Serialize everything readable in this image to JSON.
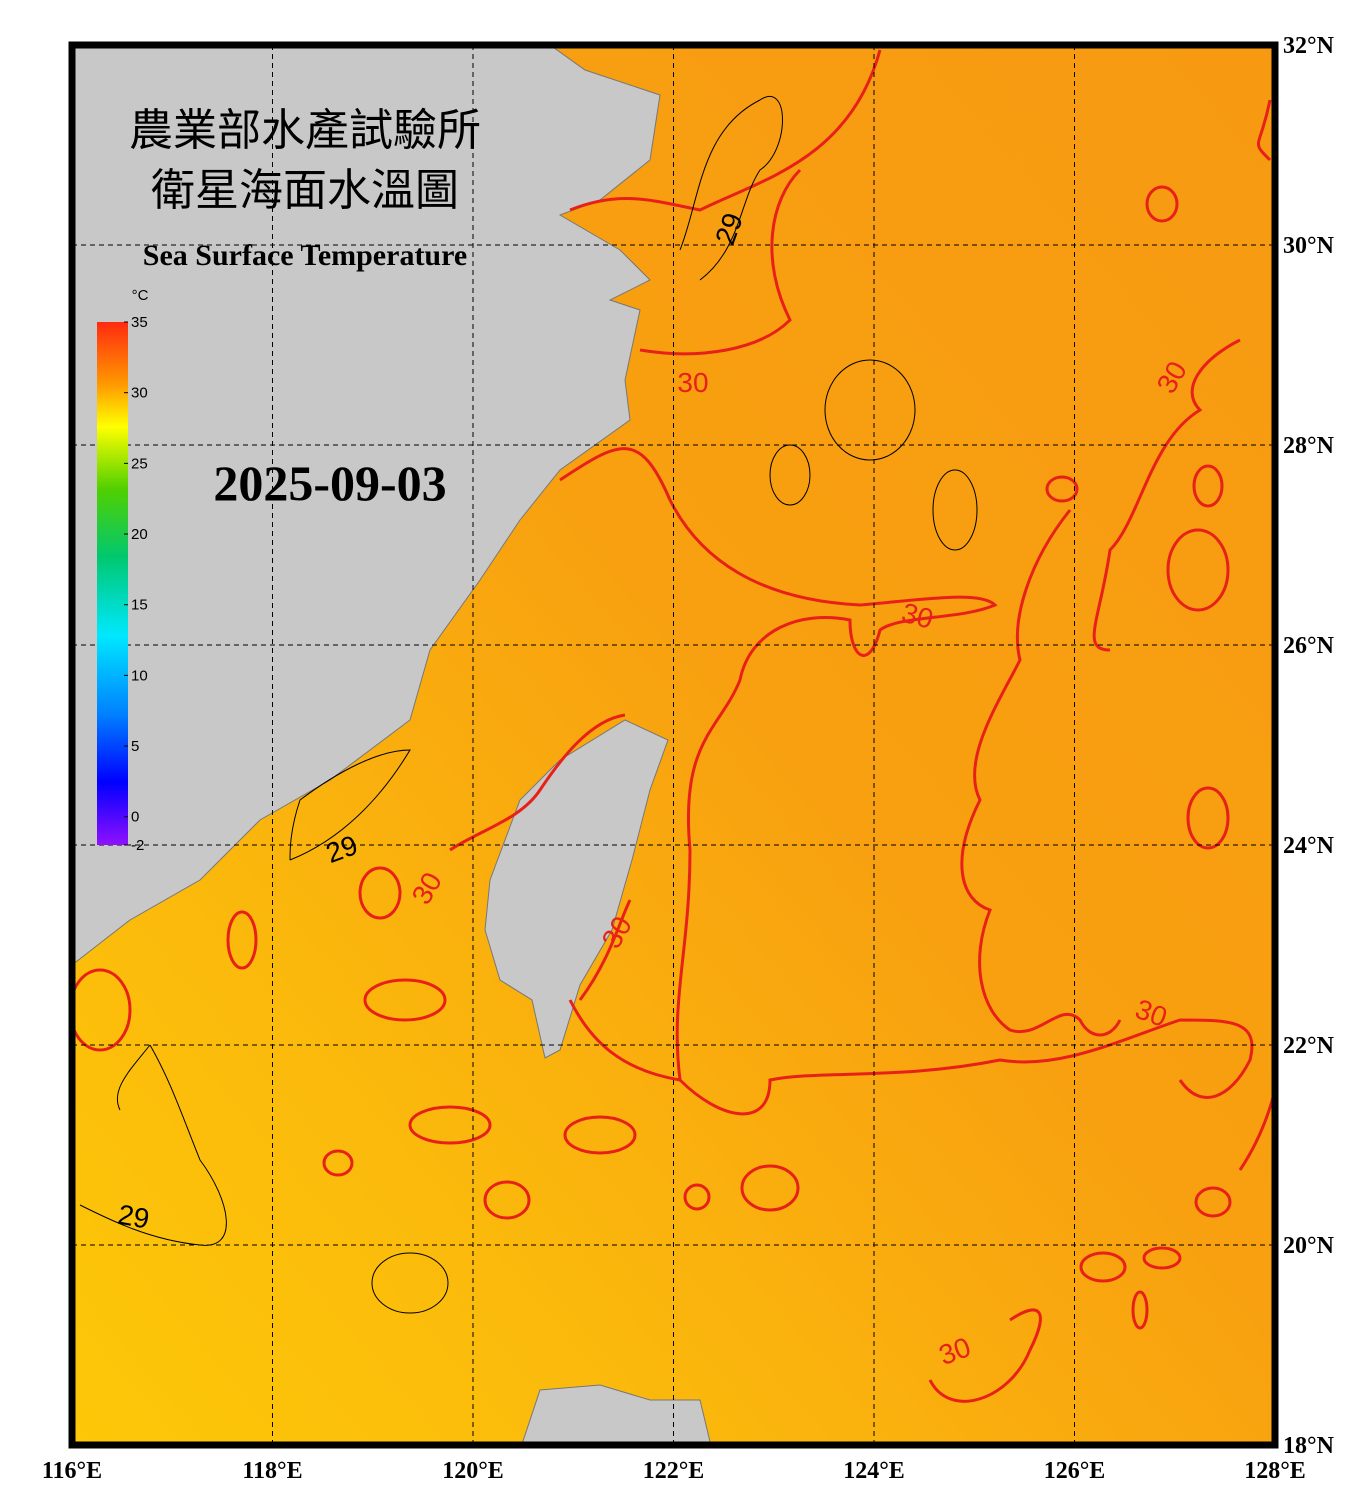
{
  "title_zh_1": "農業部水產試驗所",
  "title_zh_2": "衛星海面水溫圖",
  "title_en": "Sea Surface Temperature",
  "date": "2025-09-03",
  "colorbar": {
    "unit": "°C",
    "lim": [
      -2,
      35
    ],
    "ticks": [
      35,
      30,
      25,
      20,
      15,
      10,
      5,
      0,
      -2
    ]
  },
  "map": {
    "lon_lim": [
      116,
      128
    ],
    "lat_lim": [
      18,
      32
    ],
    "lon_ticks": [
      {
        "value": 116,
        "label": "116°E"
      },
      {
        "value": 118,
        "label": "118°E"
      },
      {
        "value": 120,
        "label": "120°E"
      },
      {
        "value": 122,
        "label": "122°E"
      },
      {
        "value": 124,
        "label": "124°E"
      },
      {
        "value": 126,
        "label": "126°E"
      },
      {
        "value": 128,
        "label": "128°E"
      }
    ],
    "lat_ticks": [
      {
        "value": 32,
        "label": "32°N"
      },
      {
        "value": 30,
        "label": "30°N"
      },
      {
        "value": 28,
        "label": "28°N"
      },
      {
        "value": 26,
        "label": "26°N"
      },
      {
        "value": 24,
        "label": "24°N"
      },
      {
        "value": 22,
        "label": "22°N"
      },
      {
        "value": 20,
        "label": "20°N"
      },
      {
        "value": 18,
        "label": "18°N"
      }
    ],
    "contour_labels": [
      29,
      30,
      29,
      30,
      30,
      29,
      30,
      30,
      30,
      30
    ]
  }
}
